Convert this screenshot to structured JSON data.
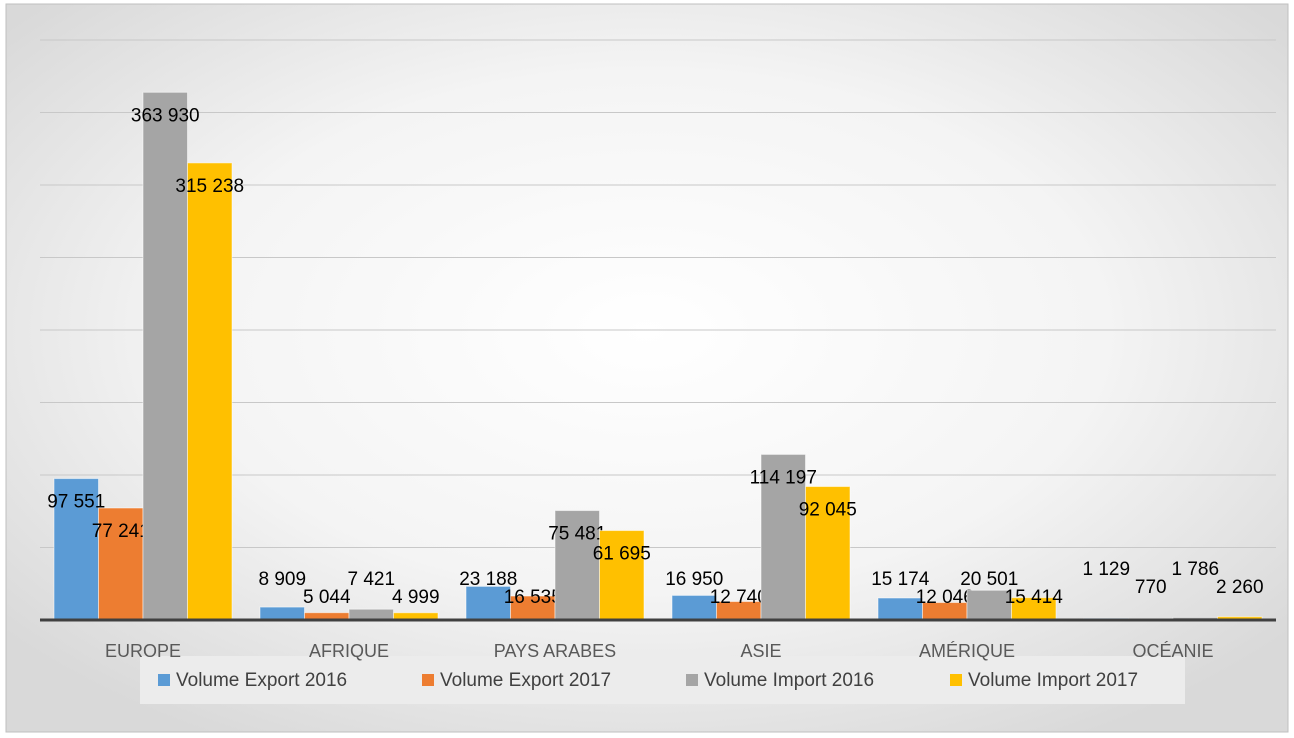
{
  "chart_data": {
    "type": "bar",
    "categories": [
      "EUROPE",
      "AFRIQUE",
      "PAYS ARABES",
      "ASIE",
      "AMÉRIQUE",
      "OCÉANIE"
    ],
    "series": [
      {
        "name": "Volume Export 2016",
        "color": "#5b9bd5",
        "values": [
          97551,
          8909,
          23188,
          16950,
          15174,
          1129
        ],
        "value_labels": [
          "97 551",
          "8 909",
          "23 188",
          "16 950",
          "15 174",
          "1 129"
        ]
      },
      {
        "name": "Volume Export 2017",
        "color": "#ed7d31",
        "values": [
          77241,
          5044,
          16535,
          12740,
          12046,
          770
        ],
        "value_labels": [
          "77 241",
          "5 044",
          "16 535",
          "12 740",
          "12 046",
          "770"
        ]
      },
      {
        "name": "Volume Import 2016",
        "color": "#a5a5a5",
        "values": [
          363930,
          7421,
          75481,
          114197,
          20501,
          1786
        ],
        "value_labels": [
          "363 930",
          "7 421",
          "75 481",
          "114 197",
          "20 501",
          "1 786"
        ]
      },
      {
        "name": "Volume Import 2017",
        "color": "#ffc000",
        "values": [
          315238,
          4999,
          61695,
          92045,
          15414,
          2260
        ],
        "value_labels": [
          "315 238",
          "4 999",
          "61 695",
          "92 045",
          "15 414",
          "2 260"
        ]
      }
    ],
    "ylim": [
      0,
      400000
    ],
    "yticks": [
      0,
      50000,
      100000,
      150000,
      200000,
      250000,
      300000,
      350000,
      400000
    ],
    "grid": true,
    "legend": "bottom"
  }
}
